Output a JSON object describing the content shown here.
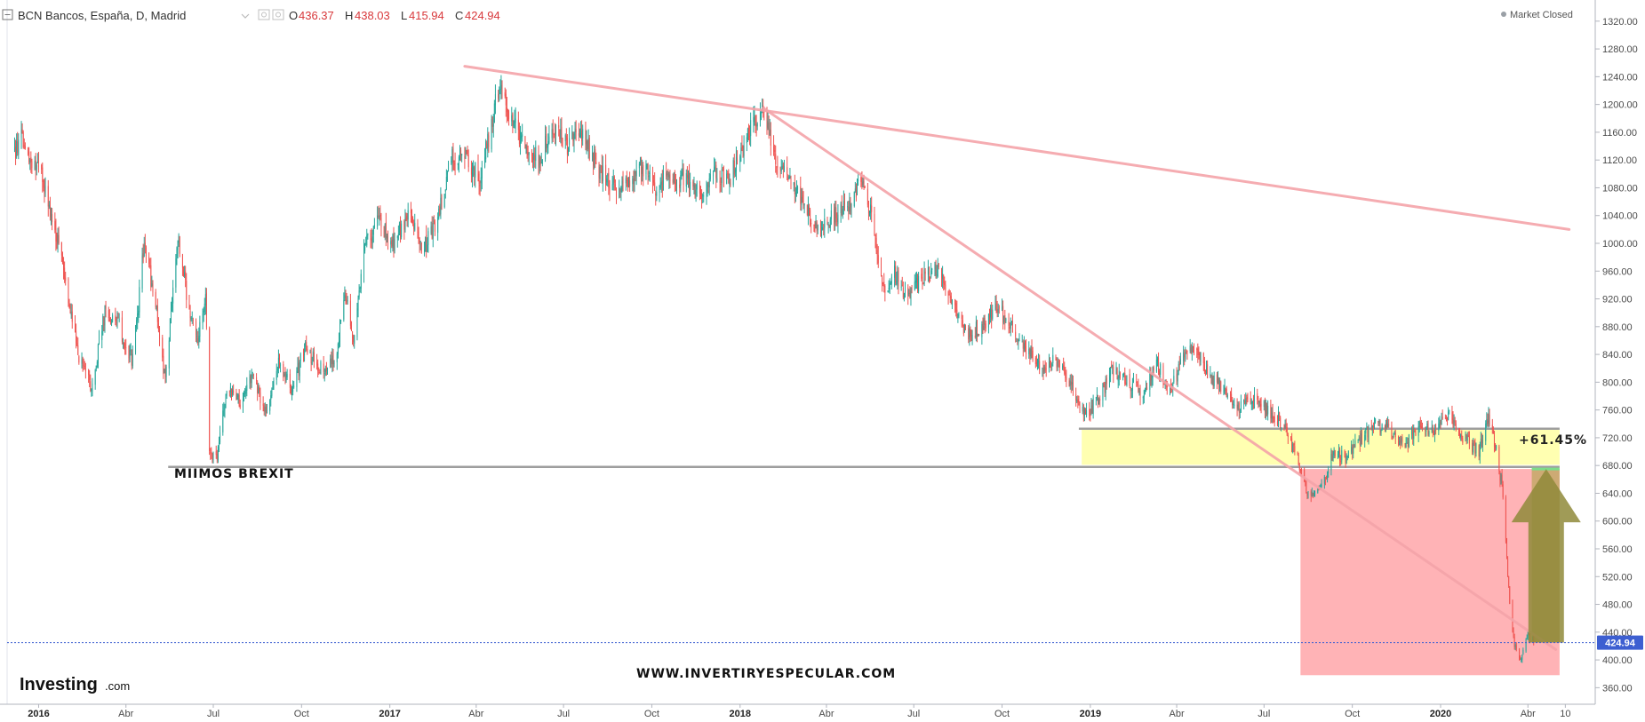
{
  "header": {
    "symbol_label": "BCN Bancos, España, D, Madrid",
    "o_label": "O",
    "o_value": "436.37",
    "h_label": "H",
    "h_value": "438.03",
    "l_label": "L",
    "l_value": "415.94",
    "c_label": "C",
    "c_value": "424.94",
    "market_status": "Market Closed"
  },
  "logo": {
    "main": "Investing",
    "domain": ".com"
  },
  "annotations": {
    "brexit_label": "MIIMOS BREXIT",
    "pct_label": "+61.45%",
    "watermark": "WWW.INVERTIRYESPECULAR.COM"
  },
  "price_tag": "424.94",
  "colors": {
    "up": "#26a69a",
    "down": "#ef5350",
    "trendline": "#f4a3a8",
    "yellow_zone": "#ffffa8",
    "red_zone": "#ff9a9e",
    "gold_zone": "#c4a868",
    "arrow": "#8f8a3a",
    "last_price": "#3d5fd1"
  },
  "chart_data": {
    "type": "candlestick",
    "ylim": [
      340,
      1330
    ],
    "yticks": [
      "1320.00",
      "1280.00",
      "1240.00",
      "1200.00",
      "1160.00",
      "1120.00",
      "1080.00",
      "1040.00",
      "1000.00",
      "960.00",
      "920.00",
      "880.00",
      "840.00",
      "800.00",
      "760.00",
      "720.00",
      "680.00",
      "640.00",
      "600.00",
      "560.00",
      "520.00",
      "480.00",
      "440.00",
      "400.00",
      "360.00"
    ],
    "xticks": [
      {
        "label": "2016",
        "date": "2016-01-01",
        "bold": true
      },
      {
        "label": "Abr",
        "date": "2016-04-01",
        "bold": false
      },
      {
        "label": "Jul",
        "date": "2016-07-01",
        "bold": false
      },
      {
        "label": "Oct",
        "date": "2016-10-01",
        "bold": false
      },
      {
        "label": "2017",
        "date": "2017-01-01",
        "bold": true
      },
      {
        "label": "Abr",
        "date": "2017-04-01",
        "bold": false
      },
      {
        "label": "Jul",
        "date": "2017-07-01",
        "bold": false
      },
      {
        "label": "Oct",
        "date": "2017-10-01",
        "bold": false
      },
      {
        "label": "2018",
        "date": "2018-01-01",
        "bold": true
      },
      {
        "label": "Abr",
        "date": "2018-04-01",
        "bold": false
      },
      {
        "label": "Jul",
        "date": "2018-07-01",
        "bold": false
      },
      {
        "label": "Oct",
        "date": "2018-10-01",
        "bold": false
      },
      {
        "label": "2019",
        "date": "2019-01-01",
        "bold": true
      },
      {
        "label": "Abr",
        "date": "2019-04-01",
        "bold": false
      },
      {
        "label": "Jul",
        "date": "2019-07-01",
        "bold": false
      },
      {
        "label": "Oct",
        "date": "2019-10-01",
        "bold": false
      },
      {
        "label": "2020",
        "date": "2020-01-01",
        "bold": true
      },
      {
        "label": "Abr",
        "date": "2020-04-01",
        "bold": false
      },
      {
        "label": "10",
        "date": "2020-05-10",
        "bold": false
      }
    ],
    "price_path": [
      [
        "2015-12-07",
        1130
      ],
      [
        "2015-12-15",
        1150
      ],
      [
        "2016-01-05",
        1090
      ],
      [
        "2016-01-20",
        1010
      ],
      [
        "2016-02-11",
        840
      ],
      [
        "2016-02-25",
        790
      ],
      [
        "2016-03-10",
        900
      ],
      [
        "2016-03-25",
        880
      ],
      [
        "2016-04-08",
        830
      ],
      [
        "2016-04-20",
        1000
      ],
      [
        "2016-05-01",
        920
      ],
      [
        "2016-05-12",
        800
      ],
      [
        "2016-05-25",
        1010
      ],
      [
        "2016-06-05",
        910
      ],
      [
        "2016-06-15",
        860
      ],
      [
        "2016-06-23",
        930
      ],
      [
        "2016-06-27",
        700
      ],
      [
        "2016-07-05",
        690
      ],
      [
        "2016-07-15",
        790
      ],
      [
        "2016-07-28",
        770
      ],
      [
        "2016-08-10",
        810
      ],
      [
        "2016-08-25",
        760
      ],
      [
        "2016-09-08",
        830
      ],
      [
        "2016-09-20",
        790
      ],
      [
        "2016-10-05",
        850
      ],
      [
        "2016-10-20",
        820
      ],
      [
        "2016-11-05",
        830
      ],
      [
        "2016-11-15",
        930
      ],
      [
        "2016-11-25",
        860
      ],
      [
        "2016-12-05",
        1000
      ],
      [
        "2016-12-20",
        1030
      ],
      [
        "2017-01-05",
        1000
      ],
      [
        "2017-01-20",
        1040
      ],
      [
        "2017-02-05",
        990
      ],
      [
        "2017-02-20",
        1040
      ],
      [
        "2017-03-05",
        1120
      ],
      [
        "2017-03-20",
        1130
      ],
      [
        "2017-04-05",
        1090
      ],
      [
        "2017-04-15",
        1160
      ],
      [
        "2017-04-25",
        1230
      ],
      [
        "2017-05-05",
        1180
      ],
      [
        "2017-05-20",
        1150
      ],
      [
        "2017-06-05",
        1120
      ],
      [
        "2017-06-20",
        1170
      ],
      [
        "2017-07-05",
        1140
      ],
      [
        "2017-07-20",
        1160
      ],
      [
        "2017-08-05",
        1110
      ],
      [
        "2017-08-20",
        1080
      ],
      [
        "2017-09-05",
        1090
      ],
      [
        "2017-09-20",
        1110
      ],
      [
        "2017-10-05",
        1080
      ],
      [
        "2017-10-20",
        1100
      ],
      [
        "2017-11-05",
        1090
      ],
      [
        "2017-11-20",
        1070
      ],
      [
        "2017-12-05",
        1100
      ],
      [
        "2017-12-20",
        1090
      ],
      [
        "2018-01-10",
        1160
      ],
      [
        "2018-01-26",
        1190
      ],
      [
        "2018-02-08",
        1110
      ],
      [
        "2018-02-25",
        1090
      ],
      [
        "2018-03-10",
        1050
      ],
      [
        "2018-03-25",
        1020
      ],
      [
        "2018-04-10",
        1040
      ],
      [
        "2018-04-25",
        1060
      ],
      [
        "2018-05-07",
        1090
      ],
      [
        "2018-05-18",
        1040
      ],
      [
        "2018-05-30",
        930
      ],
      [
        "2018-06-10",
        960
      ],
      [
        "2018-06-25",
        920
      ],
      [
        "2018-07-10",
        950
      ],
      [
        "2018-07-25",
        960
      ],
      [
        "2018-08-10",
        920
      ],
      [
        "2018-08-25",
        870
      ],
      [
        "2018-09-10",
        880
      ],
      [
        "2018-09-25",
        910
      ],
      [
        "2018-10-10",
        880
      ],
      [
        "2018-10-25",
        850
      ],
      [
        "2018-11-10",
        820
      ],
      [
        "2018-11-25",
        830
      ],
      [
        "2018-12-10",
        800
      ],
      [
        "2018-12-27",
        750
      ],
      [
        "2019-01-10",
        780
      ],
      [
        "2019-01-25",
        820
      ],
      [
        "2019-02-10",
        800
      ],
      [
        "2019-02-25",
        780
      ],
      [
        "2019-03-10",
        830
      ],
      [
        "2019-03-25",
        790
      ],
      [
        "2019-04-10",
        840
      ],
      [
        "2019-04-20",
        850
      ],
      [
        "2019-05-05",
        810
      ],
      [
        "2019-05-20",
        790
      ],
      [
        "2019-06-05",
        760
      ],
      [
        "2019-06-20",
        780
      ],
      [
        "2019-07-05",
        760
      ],
      [
        "2019-07-20",
        740
      ],
      [
        "2019-08-05",
        690
      ],
      [
        "2019-08-15",
        640
      ],
      [
        "2019-08-30",
        650
      ],
      [
        "2019-09-12",
        700
      ],
      [
        "2019-09-25",
        690
      ],
      [
        "2019-10-10",
        720
      ],
      [
        "2019-10-25",
        740
      ],
      [
        "2019-11-10",
        730
      ],
      [
        "2019-11-25",
        710
      ],
      [
        "2019-12-10",
        740
      ],
      [
        "2019-12-25",
        730
      ],
      [
        "2020-01-10",
        750
      ],
      [
        "2020-01-25",
        720
      ],
      [
        "2020-02-10",
        700
      ],
      [
        "2020-02-20",
        750
      ],
      [
        "2020-02-28",
        700
      ],
      [
        "2020-03-06",
        640
      ],
      [
        "2020-03-12",
        500
      ],
      [
        "2020-03-18",
        420
      ],
      [
        "2020-03-25",
        400
      ],
      [
        "2020-04-01",
        440
      ],
      [
        "2020-04-07",
        424
      ]
    ],
    "trendlines": [
      {
        "from": [
          "2017-03-20",
          1255
        ],
        "to": [
          "2020-05-14",
          1020
        ]
      },
      {
        "from": [
          "2018-01-25",
          1195
        ],
        "to": [
          "2020-04-30",
          415
        ]
      }
    ],
    "horizontal_lines": [
      {
        "from_date": "2016-05-15",
        "to_date": "2020-05-04",
        "value": 678
      },
      {
        "from_date": "2018-12-20",
        "to_date": "2020-05-04",
        "value": 733
      }
    ],
    "zones": [
      {
        "kind": "yellow",
        "x0": "2018-12-23",
        "x1": "2020-05-04",
        "y0": 681,
        "y1": 733
      },
      {
        "kind": "red",
        "x0": "2019-08-08",
        "x1": "2020-05-04",
        "y0": 378,
        "y1": 675
      },
      {
        "kind": "gold",
        "x0": "2020-04-05",
        "x1": "2020-05-04",
        "y0": 425,
        "y1": 675
      }
    ],
    "arrow": {
      "date": "2020-04-20",
      "from_value": 425,
      "to_value": 675
    },
    "last_price": 424.94
  }
}
